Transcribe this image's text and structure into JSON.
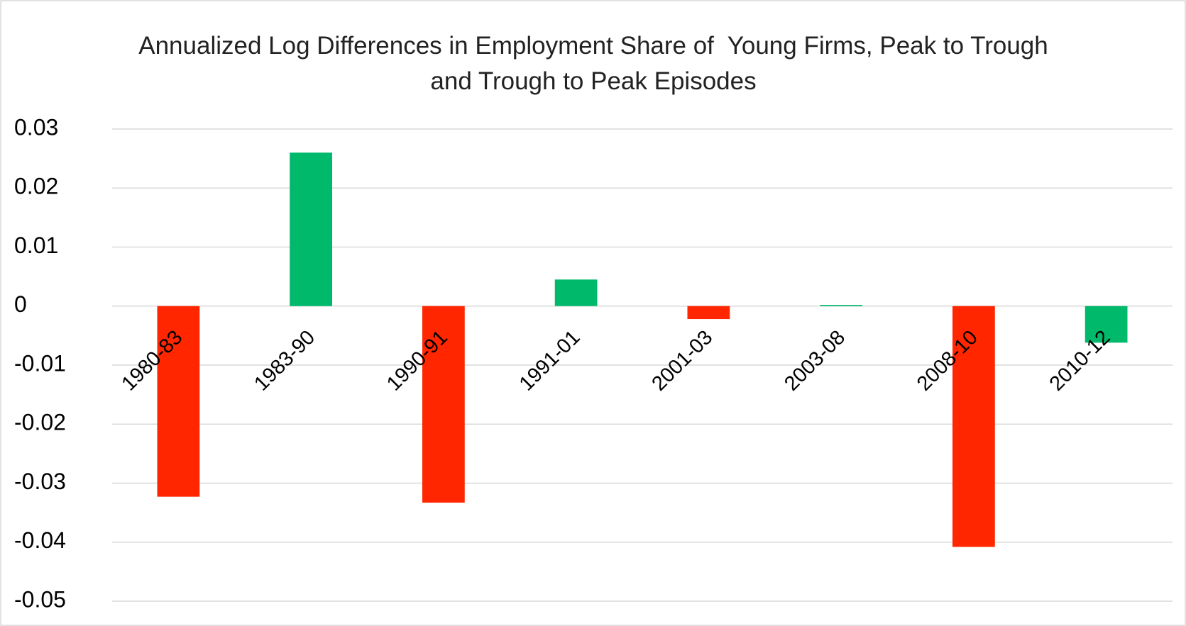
{
  "chart_data": {
    "type": "bar",
    "title": "Annualized Log Differences in Employment Share of  Young Firms, Peak to Trough and Trough to Peak Episodes",
    "categories": [
      "1980-83",
      "1983-90",
      "1990-91",
      "1991-01",
      "2001-03",
      "2003-08",
      "2008-10",
      "2010-12"
    ],
    "values": [
      -0.0323,
      0.026,
      -0.0333,
      0.0045,
      -0.0022,
      0.0002,
      -0.0408,
      -0.0062
    ],
    "colors": [
      "#ff2600",
      "#00b96b",
      "#ff2600",
      "#00b96b",
      "#ff2600",
      "#00b96b",
      "#ff2600",
      "#00b96b"
    ],
    "ylim": [
      -0.05,
      0.03
    ],
    "yticks": [
      0.03,
      0.02,
      0.01,
      0,
      -0.01,
      -0.02,
      -0.03,
      -0.04,
      -0.05
    ],
    "grid": true
  }
}
